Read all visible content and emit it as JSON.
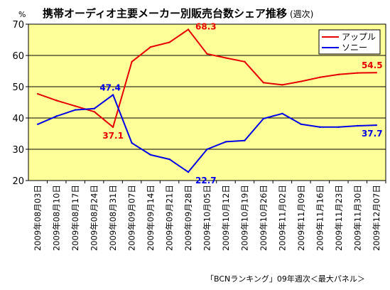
{
  "chart_data": {
    "type": "line",
    "title": "携帯オーディオ主要メーカー別販売台数シェア推移",
    "subtitle": "(週次)",
    "y_unit": "%",
    "ylim": [
      20,
      70
    ],
    "yticks": [
      20,
      30,
      40,
      50,
      60,
      70
    ],
    "grid": true,
    "legend_position": "top-right",
    "categories": [
      "2009年08月03日",
      "2009年08月10日",
      "2009年08月17日",
      "2009年08月24日",
      "2009年08月31日",
      "2009年09月07日",
      "2009年09月14日",
      "2009年09月21日",
      "2009年09月28日",
      "2009年10月05日",
      "2009年10月12日",
      "2009年10月19日",
      "2009年10月26日",
      "2009年11月02日",
      "2009年11月09日",
      "2009年11月16日",
      "2009年11月23日",
      "2009年11月30日",
      "2009年12月07日"
    ],
    "series": [
      {
        "name": "アップル",
        "color": "#e60000",
        "values": [
          47.7,
          45.6,
          43.8,
          42.0,
          37.1,
          58.0,
          62.7,
          64.2,
          68.3,
          60.5,
          59.2,
          58.0,
          51.3,
          50.6,
          51.7,
          53.0,
          53.9,
          54.4,
          54.5
        ]
      },
      {
        "name": "ソニー",
        "color": "#0000e6",
        "values": [
          38.0,
          40.6,
          42.6,
          43.0,
          47.4,
          32.0,
          28.2,
          26.8,
          22.7,
          30.0,
          32.4,
          32.8,
          39.8,
          41.4,
          38.0,
          37.1,
          37.1,
          37.5,
          37.7
        ]
      }
    ],
    "data_labels": [
      {
        "series": 0,
        "index": 4,
        "text": "37.1",
        "color": "#e60000",
        "pos": "below"
      },
      {
        "series": 0,
        "index": 8,
        "text": "68.3",
        "color": "#e60000",
        "pos": "right"
      },
      {
        "series": 0,
        "index": 18,
        "text": "54.5",
        "color": "#e60000",
        "pos": "above"
      },
      {
        "series": 1,
        "index": 4,
        "text": "47.4",
        "color": "#0000e6",
        "pos": "above-left"
      },
      {
        "series": 1,
        "index": 8,
        "text": "22.7",
        "color": "#0000e6",
        "pos": "below-right"
      },
      {
        "series": 1,
        "index": 18,
        "text": "37.7",
        "color": "#0000e6",
        "pos": "below"
      }
    ],
    "source": "「BCNランキング」09年週次＜最大パネル＞"
  },
  "colors": {
    "plot_bg": "#ffff99",
    "grid": "#000000"
  }
}
